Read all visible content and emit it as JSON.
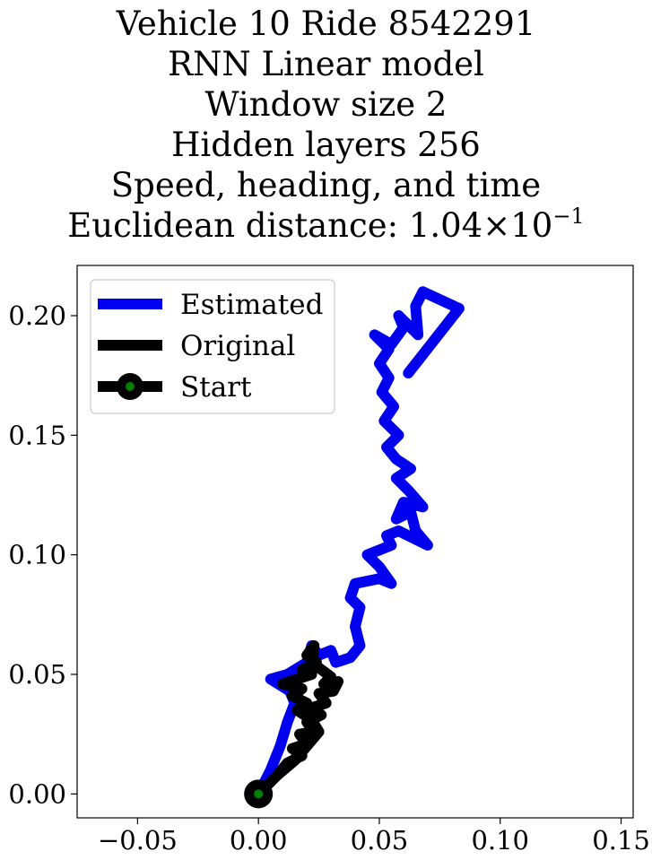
{
  "chart_data": {
    "type": "line",
    "title_lines": [
      "Vehicle 10 Ride 8542291",
      "RNN Linear model",
      "Window size 2",
      "Hidden layers 256",
      "Speed, heading, and time"
    ],
    "metric_label": "Euclidean distance: ",
    "metric_mantissa": "1.04",
    "metric_times": "×",
    "metric_base": "10",
    "metric_exponent": "−1",
    "xlim": [
      -0.075,
      0.155
    ],
    "ylim": [
      -0.01,
      0.221
    ],
    "xticks": [
      -0.05,
      0.0,
      0.05,
      0.1,
      0.15
    ],
    "xtick_labels": [
      "−0.05",
      "0.00",
      "0.05",
      "0.10",
      "0.15"
    ],
    "yticks": [
      0.0,
      0.05,
      0.1,
      0.15,
      0.2
    ],
    "ytick_labels": [
      "0.00",
      "0.05",
      "0.10",
      "0.15",
      "0.20"
    ],
    "grid": false,
    "legend_position": "upper-left",
    "series": [
      {
        "name": "Estimated",
        "color": "#0000ee",
        "points": [
          [
            0.0,
            0.0
          ],
          [
            0.005,
            0.01
          ],
          [
            0.009,
            0.02
          ],
          [
            0.012,
            0.03
          ],
          [
            0.015,
            0.038
          ],
          [
            0.013,
            0.043
          ],
          [
            0.005,
            0.048
          ],
          [
            0.012,
            0.05
          ],
          [
            0.02,
            0.055
          ],
          [
            0.022,
            0.062
          ],
          [
            0.025,
            0.058
          ],
          [
            0.03,
            0.06
          ],
          [
            0.032,
            0.055
          ],
          [
            0.038,
            0.057
          ],
          [
            0.042,
            0.062
          ],
          [
            0.04,
            0.07
          ],
          [
            0.042,
            0.078
          ],
          [
            0.038,
            0.082
          ],
          [
            0.04,
            0.088
          ],
          [
            0.05,
            0.09
          ],
          [
            0.055,
            0.088
          ],
          [
            0.05,
            0.095
          ],
          [
            0.045,
            0.1
          ],
          [
            0.055,
            0.104
          ],
          [
            0.053,
            0.108
          ],
          [
            0.058,
            0.11
          ],
          [
            0.07,
            0.104
          ],
          [
            0.065,
            0.11
          ],
          [
            0.063,
            0.118
          ],
          [
            0.057,
            0.115
          ],
          [
            0.06,
            0.122
          ],
          [
            0.068,
            0.12
          ],
          [
            0.062,
            0.127
          ],
          [
            0.057,
            0.132
          ],
          [
            0.063,
            0.136
          ],
          [
            0.057,
            0.14
          ],
          [
            0.053,
            0.145
          ],
          [
            0.058,
            0.15
          ],
          [
            0.052,
            0.156
          ],
          [
            0.056,
            0.162
          ],
          [
            0.051,
            0.168
          ],
          [
            0.054,
            0.174
          ],
          [
            0.05,
            0.18
          ],
          [
            0.054,
            0.186
          ],
          [
            0.048,
            0.192
          ],
          [
            0.055,
            0.188
          ],
          [
            0.06,
            0.195
          ],
          [
            0.058,
            0.2
          ],
          [
            0.066,
            0.192
          ],
          [
            0.065,
            0.204
          ],
          [
            0.068,
            0.21
          ],
          [
            0.083,
            0.203
          ],
          [
            0.062,
            0.176
          ]
        ]
      },
      {
        "name": "Original",
        "color": "#000000",
        "points": [
          [
            0.0,
            0.0
          ],
          [
            0.008,
            0.008
          ],
          [
            0.015,
            0.014
          ],
          [
            0.02,
            0.02
          ],
          [
            0.025,
            0.026
          ],
          [
            0.022,
            0.031
          ],
          [
            0.016,
            0.035
          ],
          [
            0.02,
            0.038
          ],
          [
            0.014,
            0.041
          ],
          [
            0.018,
            0.044
          ],
          [
            0.01,
            0.046
          ],
          [
            0.016,
            0.048
          ],
          [
            0.022,
            0.05
          ],
          [
            0.018,
            0.052
          ],
          [
            0.024,
            0.055
          ],
          [
            0.02,
            0.058
          ],
          [
            0.023,
            0.062
          ],
          [
            0.022,
            0.055
          ],
          [
            0.026,
            0.052
          ],
          [
            0.03,
            0.049
          ],
          [
            0.027,
            0.046
          ],
          [
            0.033,
            0.047
          ],
          [
            0.031,
            0.043
          ],
          [
            0.025,
            0.042
          ],
          [
            0.028,
            0.038
          ],
          [
            0.022,
            0.036
          ],
          [
            0.026,
            0.033
          ],
          [
            0.02,
            0.03
          ],
          [
            0.023,
            0.026
          ],
          [
            0.017,
            0.025
          ],
          [
            0.02,
            0.021
          ],
          [
            0.014,
            0.019
          ],
          [
            0.018,
            0.016
          ],
          [
            0.012,
            0.013
          ],
          [
            0.008,
            0.008
          ],
          [
            0.004,
            0.004
          ],
          [
            0.0,
            0.0
          ]
        ]
      }
    ],
    "start": {
      "name": "Start",
      "x": 0.0,
      "y": 0.0,
      "marker_edge": "#000000",
      "marker_face": "#008000"
    }
  }
}
